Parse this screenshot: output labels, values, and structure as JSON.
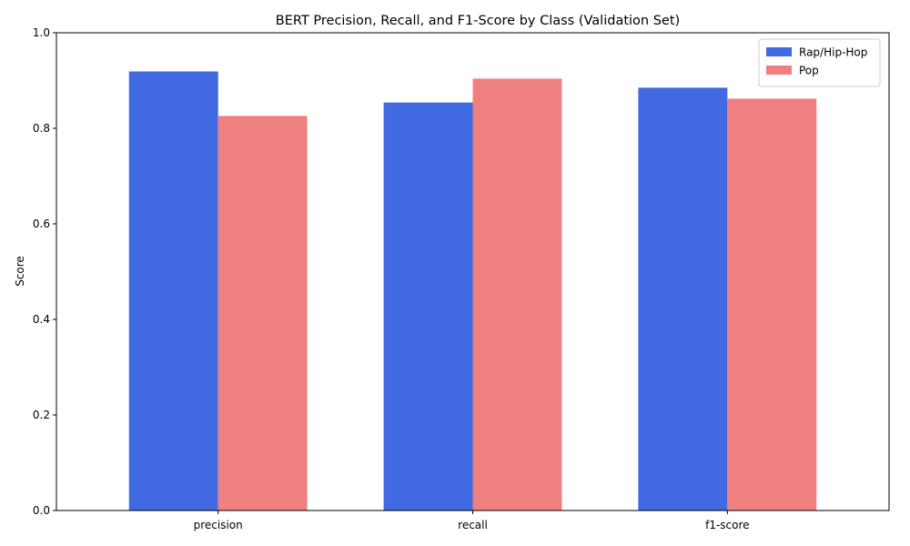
{
  "chart_data": {
    "type": "bar",
    "title": "BERT Precision, Recall, and F1-Score by Class (Validation Set)",
    "xlabel": "",
    "ylabel": "Score",
    "categories": [
      "precision",
      "recall",
      "f1-score"
    ],
    "series": [
      {
        "name": "Rap/Hip-Hop",
        "color": "#4169e1",
        "values": [
          0.919,
          0.854,
          0.885
        ]
      },
      {
        "name": "Pop",
        "color": "#f08080",
        "values": [
          0.826,
          0.904,
          0.862
        ]
      }
    ],
    "ylim": [
      0,
      1.0
    ],
    "yticks": [
      "0.0",
      "0.2",
      "0.4",
      "0.6",
      "0.8",
      "1.0"
    ],
    "legend_position": "top-right",
    "grid": false
  }
}
